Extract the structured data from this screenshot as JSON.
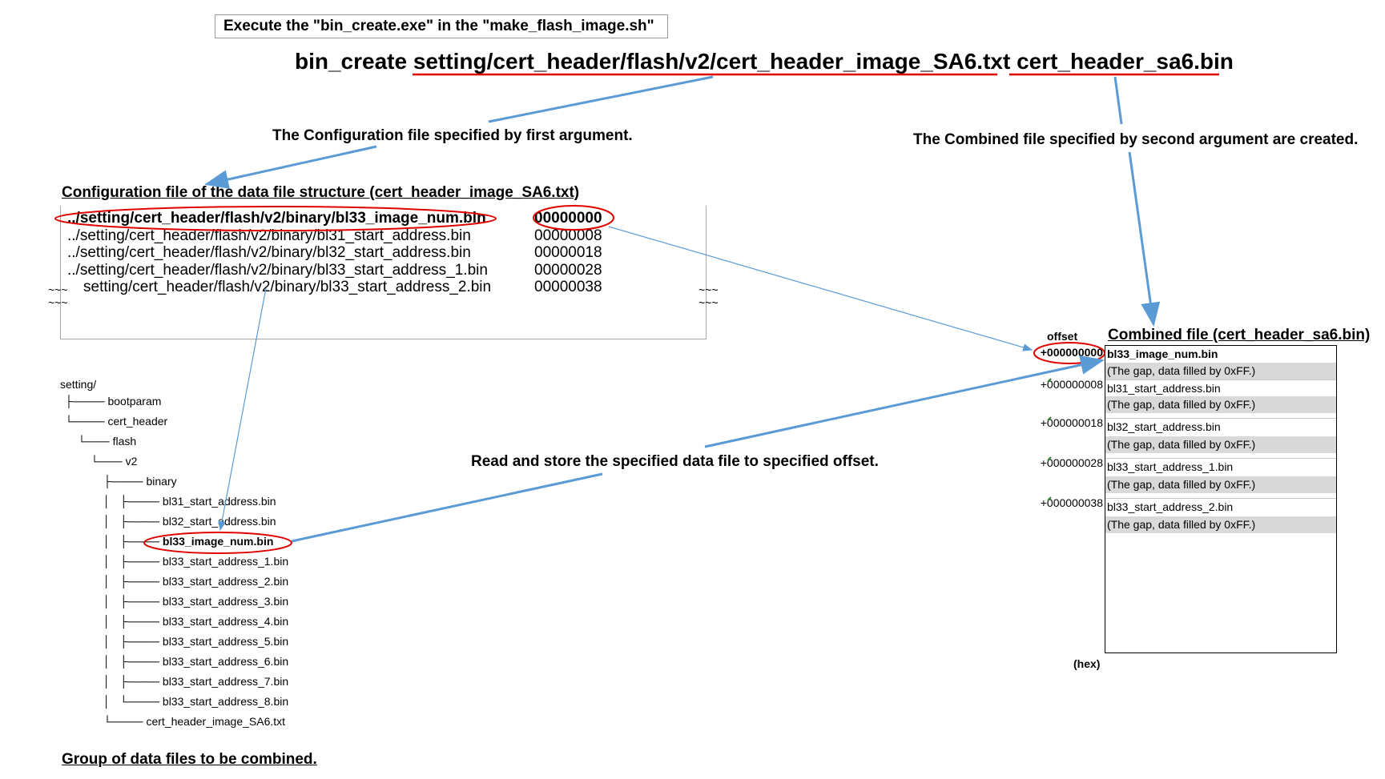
{
  "header": {
    "exec_note": "Execute the \"bin_create.exe\" in the \"make_flash_image.sh\"",
    "cmd_program": "bin_create",
    "cmd_arg1": "setting/cert_header/flash/v2/cert_header_image_SA6.txt",
    "cmd_arg2": "cert_header_sa6.bin"
  },
  "annotations": {
    "first_arg": "The Configuration file specified by first argument.",
    "second_arg": "The Combined file specified by second argument are created.",
    "read_store": "Read and store the specified data file to specified offset."
  },
  "config": {
    "title": "Configuration file of the data file structure (cert_header_image_SA6.txt)",
    "rows": [
      {
        "path": "../setting/cert_header/flash/v2/binary/bl33_image_num.bin",
        "offset": "00000000"
      },
      {
        "path": "../setting/cert_header/flash/v2/binary/bl31_start_address.bin",
        "offset": "00000008"
      },
      {
        "path": "../setting/cert_header/flash/v2/binary/bl32_start_address.bin",
        "offset": "00000018"
      },
      {
        "path": "../setting/cert_header/flash/v2/binary/bl33_start_address_1.bin",
        "offset": "00000028"
      },
      {
        "path": "setting/cert_header/flash/v2/binary/bl33_start_address_2.bin",
        "offset": "00000038"
      }
    ],
    "ellipsis": "~~~"
  },
  "tree": {
    "root": "setting/",
    "items": [
      "bootparam",
      "cert_header",
      "flash",
      "v2",
      "binary",
      "bl31_start_address.bin",
      "bl32_start_address.bin",
      "bl33_image_num.bin",
      "bl33_start_address_1.bin",
      "bl33_start_address_2.bin",
      "bl33_start_address_3.bin",
      "bl33_start_address_4.bin",
      "bl33_start_address_5.bin",
      "bl33_start_address_6.bin",
      "bl33_start_address_7.bin",
      "bl33_start_address_8.bin",
      "cert_header_image_SA6.txt"
    ],
    "caption": "Group of data files to be combined."
  },
  "combined": {
    "title": "Combined file (cert_header_sa6.bin)",
    "offset_label": "offset",
    "hex_label": "(hex)",
    "gap_text": "(The gap, data filled by 0xFF.)",
    "entries": [
      {
        "offset": "+000000000",
        "name": "bl33_image_num.bin"
      },
      {
        "offset": "+000000008",
        "name": "bl31_start_address.bin"
      },
      {
        "offset": "+000000018",
        "name": "bl32_start_address.bin"
      },
      {
        "offset": "+000000028",
        "name": "bl33_start_address_1.bin"
      },
      {
        "offset": "+000000038",
        "name": "bl33_start_address_2.bin"
      }
    ]
  },
  "colors": {
    "arrow": "#5b9bd5",
    "highlight": "#e00000"
  }
}
